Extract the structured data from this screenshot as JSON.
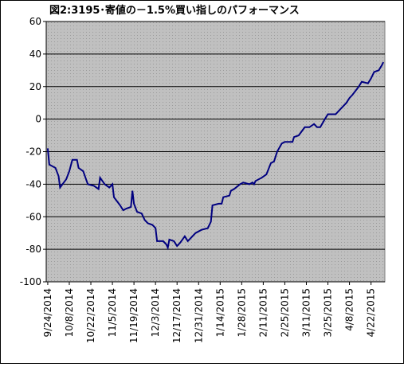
{
  "chart_data": {
    "type": "line",
    "title": "図2:3195･寄値の－1.5%買い指しのパフォーマンス",
    "series": [
      {
        "color": "#000080",
        "x": [
          "2014-09-24",
          "2014-09-25",
          "2014-09-29",
          "2014-10-01",
          "2014-10-02",
          "2014-10-06",
          "2014-10-08",
          "2014-10-10",
          "2014-10-13",
          "2014-10-14",
          "2014-10-17",
          "2014-10-20",
          "2014-10-24",
          "2014-10-27",
          "2014-10-28",
          "2014-10-31",
          "2014-11-03",
          "2014-11-05",
          "2014-11-06",
          "2014-11-10",
          "2014-11-12",
          "2014-11-14",
          "2014-11-17",
          "2014-11-18",
          "2014-11-19",
          "2014-11-21",
          "2014-11-24",
          "2014-11-26",
          "2014-11-28",
          "2014-12-01",
          "2014-12-03",
          "2014-12-04",
          "2014-12-08",
          "2014-12-10",
          "2014-12-11",
          "2014-12-12",
          "2014-12-15",
          "2014-12-17",
          "2014-12-19",
          "2014-12-22",
          "2014-12-24",
          "2014-12-26",
          "2014-12-29",
          "2015-01-02",
          "2015-01-06",
          "2015-01-08",
          "2015-01-09",
          "2015-01-13",
          "2015-01-15",
          "2015-01-16",
          "2015-01-20",
          "2015-01-21",
          "2015-01-23",
          "2015-01-27",
          "2015-01-29",
          "2015-02-02",
          "2015-02-04",
          "2015-02-05",
          "2015-02-06",
          "2015-02-10",
          "2015-02-13",
          "2015-02-16",
          "2015-02-18",
          "2015-02-20",
          "2015-02-23",
          "2015-02-25",
          "2015-03-02",
          "2015-03-03",
          "2015-03-06",
          "2015-03-10",
          "2015-03-13",
          "2015-03-16",
          "2015-03-18",
          "2015-03-20",
          "2015-03-23",
          "2015-03-25",
          "2015-03-30",
          "2015-04-01",
          "2015-04-03",
          "2015-04-06",
          "2015-04-08",
          "2015-04-10",
          "2015-04-14",
          "2015-04-16",
          "2015-04-20",
          "2015-04-22",
          "2015-04-24",
          "2015-04-27",
          "2015-04-29",
          "2015-04-30"
        ],
        "values": [
          -18,
          -28,
          -30,
          -35,
          -42,
          -37,
          -32,
          -25,
          -25,
          -30,
          -32,
          -40,
          -41,
          -43,
          -36,
          -40,
          -42,
          -40,
          -48,
          -53,
          -56,
          -55,
          -54,
          -44,
          -52,
          -57,
          -58,
          -62,
          -64,
          -65,
          -67,
          -75,
          -75,
          -77,
          -79,
          -74,
          -75,
          -78,
          -76,
          -72,
          -75,
          -73,
          -70,
          -68,
          -67,
          -63,
          -53,
          -52,
          -52,
          -48,
          -47,
          -44,
          -43,
          -40,
          -39,
          -40,
          -39,
          -40,
          -38,
          -36,
          -34,
          -27,
          -26,
          -20,
          -15,
          -14,
          -14,
          -11,
          -10,
          -5,
          -5,
          -3,
          -5,
          -5,
          0,
          3,
          3,
          5,
          7,
          10,
          13,
          15,
          20,
          23,
          22,
          25,
          29,
          30,
          33,
          35
        ]
      }
    ],
    "xlim": [
      "2014-09-23",
      "2015-05-01"
    ],
    "xticks": [
      {
        "value": "2014-09-24",
        "label": "9/24/2014"
      },
      {
        "value": "2014-10-08",
        "label": "10/8/2014"
      },
      {
        "value": "2014-10-22",
        "label": "10/22/2014"
      },
      {
        "value": "2014-11-05",
        "label": "11/5/2014"
      },
      {
        "value": "2014-11-19",
        "label": "11/19/2014"
      },
      {
        "value": "2014-12-03",
        "label": "12/3/2014"
      },
      {
        "value": "2014-12-17",
        "label": "12/17/2014"
      },
      {
        "value": "2014-12-31",
        "label": "12/31/2014"
      },
      {
        "value": "2015-01-14",
        "label": "1/14/2015"
      },
      {
        "value": "2015-01-28",
        "label": "1/28/2015"
      },
      {
        "value": "2015-02-11",
        "label": "2/11/2015"
      },
      {
        "value": "2015-02-25",
        "label": "2/25/2015"
      },
      {
        "value": "2015-03-11",
        "label": "3/11/2015"
      },
      {
        "value": "2015-03-25",
        "label": "3/25/2015"
      },
      {
        "value": "2015-04-08",
        "label": "4/8/2015"
      },
      {
        "value": "2015-04-22",
        "label": "4/22/2015"
      }
    ],
    "ylim": [
      -100,
      60
    ],
    "yticks": [
      -100,
      -80,
      -60,
      -40,
      -20,
      0,
      20,
      40,
      60
    ],
    "grid": true
  }
}
